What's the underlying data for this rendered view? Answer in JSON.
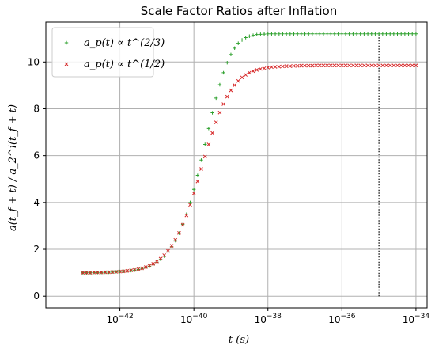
{
  "chart_data": {
    "type": "scatter",
    "title": "Scale Factor Ratios after Inflation",
    "xlabel": "t (s)",
    "ylabel": "a(t_f + t) / a_2^i(t_f + t)",
    "x_scale": "log",
    "xlim": [
      1e-44,
      2e-34
    ],
    "ylim": [
      -0.5,
      11.7
    ],
    "x_ticks": [
      1e-42,
      1e-40,
      1e-38,
      1e-36,
      1e-34
    ],
    "x_tick_labels": [
      "10−42",
      "10−40",
      "10−38",
      "10−36",
      "10−34"
    ],
    "y_ticks": [
      0,
      2,
      4,
      6,
      8,
      10
    ],
    "y_tick_labels": [
      "0",
      "2",
      "4",
      "6",
      "8",
      "10"
    ],
    "grid": true,
    "legend_position": "top-left",
    "vline": {
      "x": 1e-35,
      "from": 0,
      "to": 11.2,
      "style": "dotted",
      "color": "#000000"
    },
    "series": [
      {
        "name": "a_p(t) ∝ t^(2/3)",
        "marker": "plus",
        "color": "#2ca02c",
        "x": [
          1e-43,
          1.26e-43,
          1.58e-43,
          2e-43,
          2.51e-43,
          3.16e-43,
          3.98e-43,
          5.01e-43,
          6.31e-43,
          7.94e-43,
          1e-42,
          1.26e-42,
          1.58e-42,
          2e-42,
          2.51e-42,
          3.16e-42,
          3.98e-42,
          5.01e-42,
          6.31e-42,
          7.94e-42,
          1e-41,
          1.26e-41,
          1.58e-41,
          2e-41,
          2.51e-41,
          3.16e-41,
          3.98e-41,
          5.01e-41,
          6.31e-41,
          7.94e-41,
          1e-40,
          1.26e-40,
          1.58e-40,
          2e-40,
          2.51e-40,
          3.16e-40,
          3.98e-40,
          5.01e-40,
          6.31e-40,
          7.94e-40,
          1e-39,
          1.26e-39,
          1.58e-39,
          2e-39,
          2.51e-39,
          3.16e-39,
          3.98e-39,
          5.01e-39,
          6.31e-39,
          7.94e-39,
          1e-38,
          1.26e-38,
          1.58e-38,
          2e-38,
          2.51e-38,
          3.16e-38,
          3.98e-38,
          5.01e-38,
          6.31e-38,
          7.94e-38,
          1e-37,
          1.26e-37,
          1.58e-37,
          2e-37,
          2.51e-37,
          3.16e-37,
          3.98e-37,
          5.01e-37,
          6.31e-37,
          7.94e-37,
          1e-36,
          1.26e-36,
          1.58e-36,
          2e-36,
          2.51e-36,
          3.16e-36,
          3.98e-36,
          5.01e-36,
          6.31e-36,
          7.94e-36,
          1e-35,
          1.26e-35,
          1.58e-35,
          2e-35,
          2.51e-35,
          3.16e-35,
          3.98e-35,
          5.01e-35,
          6.31e-35,
          7.94e-35,
          1e-34
        ],
        "y": [
          1.0,
          1.0,
          1.0,
          1.01,
          1.01,
          1.01,
          1.02,
          1.02,
          1.03,
          1.04,
          1.05,
          1.06,
          1.07,
          1.09,
          1.11,
          1.14,
          1.18,
          1.22,
          1.28,
          1.36,
          1.45,
          1.57,
          1.71,
          1.89,
          2.11,
          2.37,
          2.69,
          3.06,
          3.5,
          4.0,
          4.56,
          5.16,
          5.81,
          6.48,
          7.16,
          7.83,
          8.46,
          9.03,
          9.54,
          9.97,
          10.32,
          10.59,
          10.8,
          10.94,
          11.04,
          11.1,
          11.14,
          11.17,
          11.18,
          11.19,
          11.2,
          11.2,
          11.2,
          11.2,
          11.2,
          11.2,
          11.2,
          11.2,
          11.2,
          11.2,
          11.2,
          11.2,
          11.2,
          11.2,
          11.2,
          11.2,
          11.2,
          11.2,
          11.2,
          11.2,
          11.2,
          11.2,
          11.2,
          11.2,
          11.2,
          11.2,
          11.2,
          11.2,
          11.2,
          11.2,
          11.2,
          11.2,
          11.2,
          11.2,
          11.2,
          11.2,
          11.2,
          11.2,
          11.2,
          11.2,
          11.2
        ]
      },
      {
        "name": "a_p(t) ∝ t^(1/2)",
        "marker": "x",
        "color": "#d62728",
        "x": [
          1e-43,
          1.26e-43,
          1.58e-43,
          2e-43,
          2.51e-43,
          3.16e-43,
          3.98e-43,
          5.01e-43,
          6.31e-43,
          7.94e-43,
          1e-42,
          1.26e-42,
          1.58e-42,
          2e-42,
          2.51e-42,
          3.16e-42,
          3.98e-42,
          5.01e-42,
          6.31e-42,
          7.94e-42,
          1e-41,
          1.26e-41,
          1.58e-41,
          2e-41,
          2.51e-41,
          3.16e-41,
          3.98e-41,
          5.01e-41,
          6.31e-41,
          7.94e-41,
          1e-40,
          1.26e-40,
          1.58e-40,
          2e-40,
          2.51e-40,
          3.16e-40,
          3.98e-40,
          5.01e-40,
          6.31e-40,
          7.94e-40,
          1e-39,
          1.26e-39,
          1.58e-39,
          2e-39,
          2.51e-39,
          3.16e-39,
          3.98e-39,
          5.01e-39,
          6.31e-39,
          7.94e-39,
          1e-38,
          1.26e-38,
          1.58e-38,
          2e-38,
          2.51e-38,
          3.16e-38,
          3.98e-38,
          5.01e-38,
          6.31e-38,
          7.94e-38,
          1e-37,
          1.26e-37,
          1.58e-37,
          2e-37,
          2.51e-37,
          3.16e-37,
          3.98e-37,
          5.01e-37,
          6.31e-37,
          7.94e-37,
          1e-36,
          1.26e-36,
          1.58e-36,
          2e-36,
          2.51e-36,
          3.16e-36,
          3.98e-36,
          5.01e-36,
          6.31e-36,
          7.94e-36,
          1e-35,
          1.26e-35,
          1.58e-35,
          2e-35,
          2.51e-35,
          3.16e-35,
          3.98e-35,
          5.01e-35,
          6.31e-35,
          7.94e-35,
          1e-34
        ],
        "y": [
          1.0,
          1.0,
          1.0,
          1.01,
          1.01,
          1.01,
          1.02,
          1.02,
          1.03,
          1.04,
          1.05,
          1.06,
          1.08,
          1.1,
          1.12,
          1.15,
          1.19,
          1.24,
          1.3,
          1.38,
          1.48,
          1.6,
          1.75,
          1.93,
          2.15,
          2.4,
          2.7,
          3.05,
          3.45,
          3.9,
          4.39,
          4.9,
          5.43,
          5.96,
          6.48,
          6.97,
          7.42,
          7.84,
          8.2,
          8.52,
          8.79,
          9.01,
          9.19,
          9.34,
          9.45,
          9.54,
          9.61,
          9.66,
          9.7,
          9.73,
          9.76,
          9.78,
          9.79,
          9.8,
          9.81,
          9.82,
          9.82,
          9.83,
          9.83,
          9.84,
          9.84,
          9.84,
          9.84,
          9.85,
          9.85,
          9.85,
          9.85,
          9.85,
          9.85,
          9.85,
          9.85,
          9.85,
          9.85,
          9.85,
          9.85,
          9.85,
          9.85,
          9.85,
          9.85,
          9.85,
          9.85,
          9.85,
          9.85,
          9.85,
          9.85,
          9.85,
          9.85,
          9.85,
          9.85,
          9.85,
          9.85
        ]
      }
    ]
  }
}
